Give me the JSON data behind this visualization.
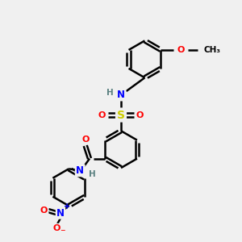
{
  "bg_color": "#f0f0f0",
  "bond_color": "#000000",
  "bond_width": 1.8,
  "atom_colors": {
    "C": "#000000",
    "H": "#5a8080",
    "N": "#0000ff",
    "O": "#ff0000",
    "S": "#cccc00"
  },
  "figsize": [
    3.0,
    3.0
  ],
  "dpi": 100,
  "xlim": [
    0,
    10
  ],
  "ylim": [
    0,
    10
  ]
}
